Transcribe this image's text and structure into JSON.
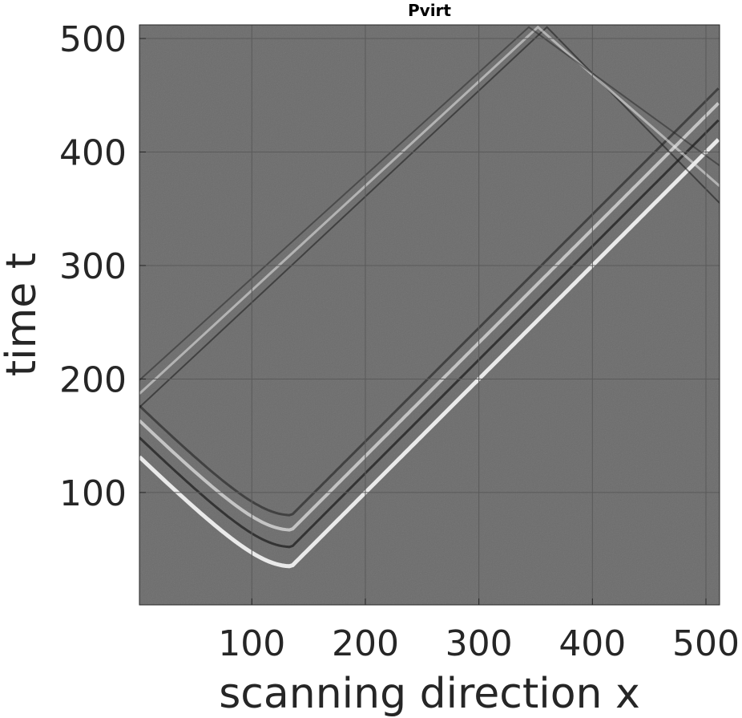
{
  "chart_data": {
    "type": "heatmap",
    "title": "Pvirt",
    "xlabel": "scanning direction x",
    "ylabel": "time t",
    "xlim": [
      1,
      512
    ],
    "ylim": [
      1,
      512
    ],
    "y_direction": "normal",
    "colormap": "gray",
    "grid": true,
    "x_ticks": [
      100,
      200,
      300,
      400,
      500
    ],
    "y_ticks": [
      100,
      200,
      300,
      400,
      500
    ],
    "features": {
      "hyperbola_apex_x": 135,
      "hyperbola_apex_t": [
        35,
        52,
        67,
        80
      ],
      "slope_t_per_x": 1,
      "reflection_x": 360,
      "right_edge_crossings_t": [
        355,
        370,
        388
      ]
    }
  }
}
